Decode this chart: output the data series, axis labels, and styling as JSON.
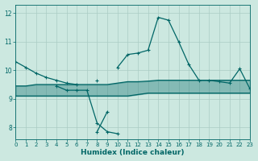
{
  "x": [
    0,
    1,
    2,
    3,
    4,
    5,
    6,
    7,
    8,
    9,
    10,
    11,
    12,
    13,
    14,
    15,
    16,
    17,
    18,
    19,
    20,
    21,
    22,
    23
  ],
  "line_main": [
    10.3,
    10.1,
    9.9,
    9.75,
    9.65,
    9.55,
    9.5,
    null,
    9.65,
    null,
    10.1,
    10.55,
    10.6,
    10.7,
    11.85,
    11.75,
    11.0,
    10.2,
    9.65,
    9.65,
    9.6,
    9.55,
    10.05,
    9.35
  ],
  "line_low": [
    10.3,
    null,
    null,
    null,
    9.45,
    9.3,
    9.3,
    9.3,
    8.15,
    7.85,
    7.78,
    null,
    null,
    null,
    null,
    null,
    null,
    null,
    null,
    null,
    null,
    null,
    null,
    null
  ],
  "line_low2": [
    null,
    null,
    null,
    null,
    null,
    null,
    null,
    null,
    null,
    8.55,
    null,
    null,
    null,
    null,
    null,
    null,
    null,
    null,
    null,
    null,
    null,
    null,
    null,
    null
  ],
  "line_upper": [
    9.45,
    9.45,
    9.5,
    9.5,
    9.5,
    9.5,
    9.5,
    9.5,
    9.5,
    9.5,
    9.55,
    9.6,
    9.6,
    9.62,
    9.65,
    9.65,
    9.65,
    9.65,
    9.65,
    9.65,
    9.65,
    9.65,
    9.65,
    9.65
  ],
  "line_lower": [
    9.1,
    9.1,
    9.1,
    9.1,
    9.1,
    9.1,
    9.1,
    9.1,
    9.1,
    9.1,
    9.1,
    9.1,
    9.15,
    9.2,
    9.2,
    9.2,
    9.2,
    9.2,
    9.2,
    9.2,
    9.2,
    9.2,
    9.2,
    9.2
  ],
  "bg_color": "#cce8e0",
  "line_color": "#006666",
  "grid_color": "#aaccc4",
  "xlim": [
    0,
    23
  ],
  "ylim": [
    7.6,
    12.3
  ],
  "yticks": [
    8,
    9,
    10,
    11,
    12
  ],
  "xticks": [
    0,
    1,
    2,
    3,
    4,
    5,
    6,
    7,
    8,
    9,
    10,
    11,
    12,
    13,
    14,
    15,
    16,
    17,
    18,
    19,
    20,
    21,
    22,
    23
  ],
  "xlabel": "Humidex (Indice chaleur)"
}
